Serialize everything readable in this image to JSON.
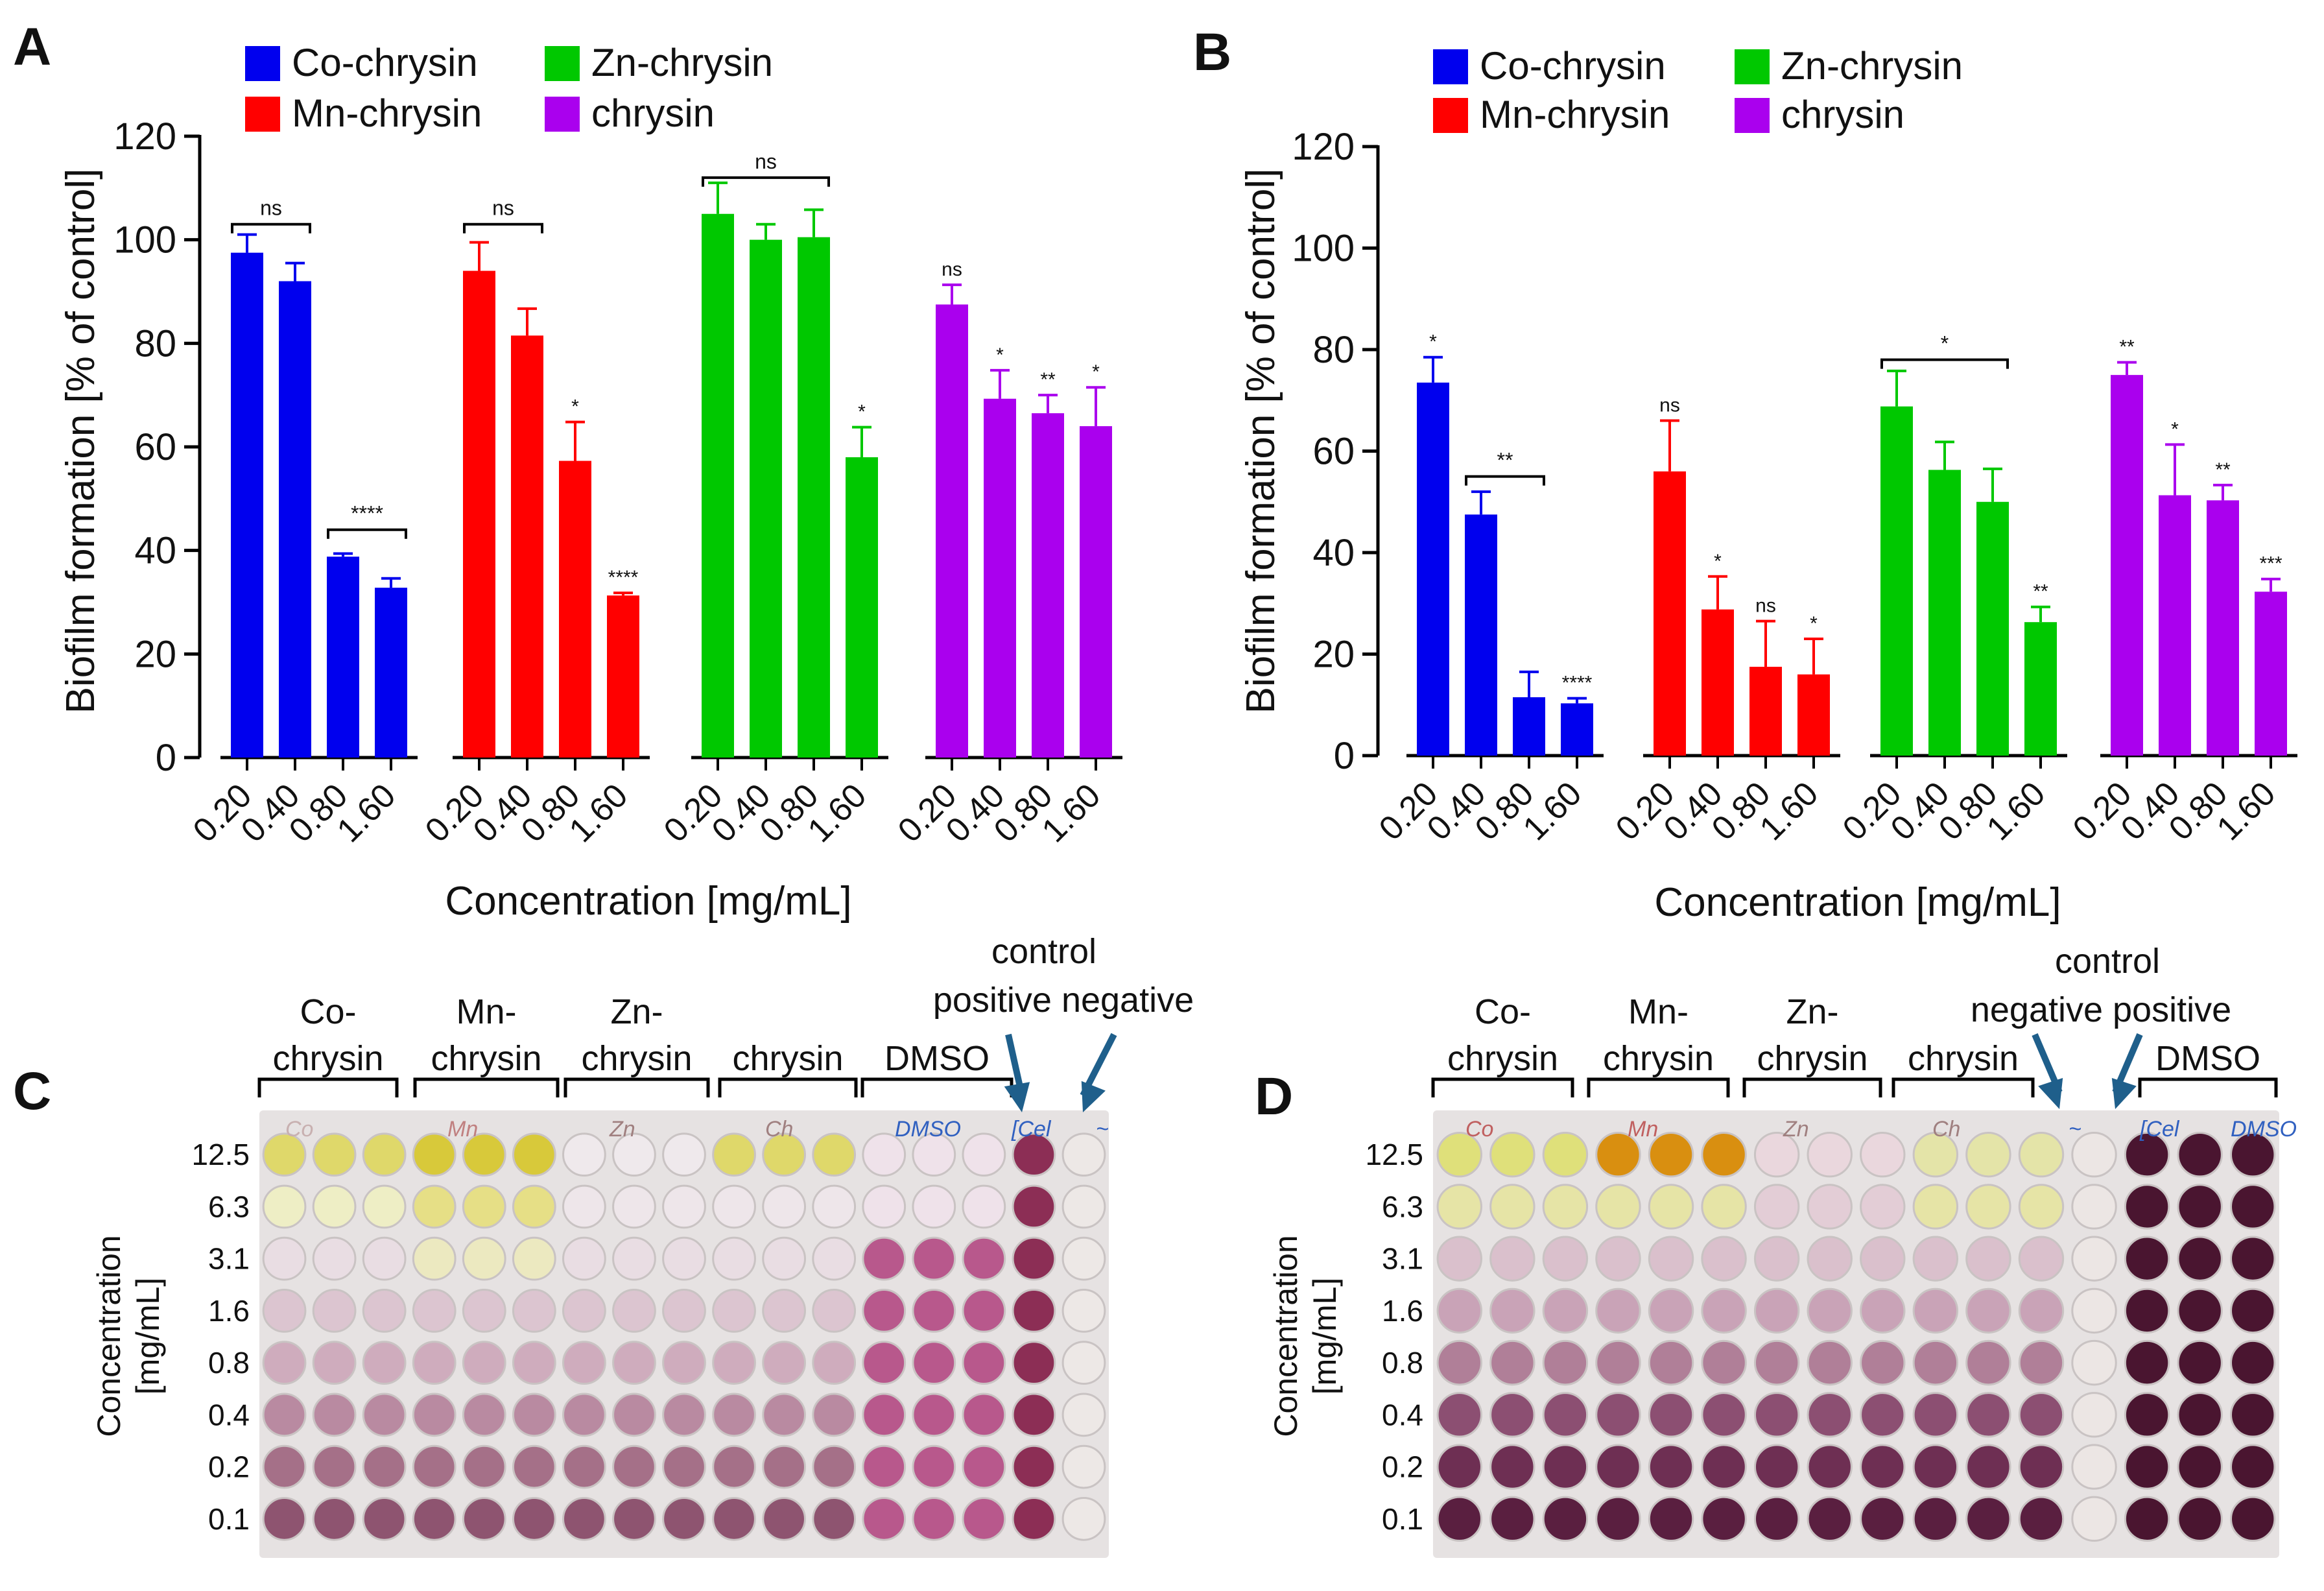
{
  "figure": {
    "panel_labels": {
      "A": "A",
      "B": "B",
      "C": "C",
      "D": "D"
    }
  },
  "colors": {
    "co": "#0000ee",
    "mn": "#ff0000",
    "zn": "#00c800",
    "chrysin": "#aa00ee",
    "axis": "#000000",
    "plate_bg": "#e6e2e2"
  },
  "legend": {
    "items": [
      {
        "label": "Co-chrysin",
        "color_key": "co"
      },
      {
        "label": "Zn-chrysin",
        "color_key": "zn"
      },
      {
        "label": "Mn-chrysin",
        "color_key": "mn"
      },
      {
        "label": "chrysin",
        "color_key": "chrysin"
      }
    ]
  },
  "chart_data": [
    {
      "panel": "A",
      "type": "bar",
      "ylabel": "Biofilm formation [% of control]",
      "xlabel": "Concentration [mg/mL]",
      "ylim": [
        0,
        120
      ],
      "yticks": [
        0,
        20,
        40,
        60,
        80,
        100,
        120
      ],
      "categories": [
        "0.20",
        "0.40",
        "0.80",
        "1.60"
      ],
      "series": [
        {
          "name": "Co-chrysin",
          "color_key": "co",
          "values": [
            97.5,
            92,
            38.8,
            32.8
          ],
          "errors": [
            3.5,
            3.5,
            0.6,
            1.8
          ],
          "sig": [
            "",
            "",
            "",
            ""
          ]
        },
        {
          "name": "Mn-chrysin",
          "color_key": "mn",
          "values": [
            94,
            81.5,
            57.3,
            31.3
          ],
          "errors": [
            5.5,
            5.2,
            7.5,
            0.5
          ],
          "sig": [
            "",
            "",
            "*",
            "****"
          ]
        },
        {
          "name": "Zn-chrysin",
          "color_key": "zn",
          "values": [
            105,
            100,
            100.5,
            58
          ],
          "errors": [
            6,
            3,
            5.3,
            5.8
          ],
          "sig": [
            "",
            "",
            "",
            "*"
          ]
        },
        {
          "name": "chrysin",
          "color_key": "chrysin",
          "values": [
            87.5,
            69.3,
            66.5,
            64
          ],
          "errors": [
            3.8,
            5.5,
            3.5,
            7.5
          ],
          "sig": [
            "ns",
            "*",
            "**",
            "*"
          ]
        }
      ],
      "brackets": [
        {
          "series": 0,
          "from": 0,
          "to": 1,
          "y": 103,
          "label": "ns"
        },
        {
          "series": 0,
          "from": 2,
          "to": 3,
          "y": 44,
          "label": "****"
        },
        {
          "series": 1,
          "from": 0,
          "to": 1,
          "y": 103,
          "label": "ns"
        },
        {
          "series": 2,
          "from": 0,
          "to": 2,
          "y": 112,
          "label": "ns"
        }
      ]
    },
    {
      "panel": "B",
      "type": "bar",
      "ylabel": "Biofilm formation [% of control]",
      "xlabel": "Concentration [mg/mL]",
      "ylim": [
        0,
        120
      ],
      "yticks": [
        0,
        20,
        40,
        60,
        80,
        100,
        120
      ],
      "categories": [
        "0.20",
        "0.40",
        "0.80",
        "1.60"
      ],
      "series": [
        {
          "name": "Co-chrysin",
          "color_key": "co",
          "values": [
            73.5,
            47.5,
            11.5,
            10.3
          ],
          "errors": [
            5,
            4.5,
            5,
            1
          ],
          "sig": [
            "*",
            "",
            "",
            "****"
          ]
        },
        {
          "name": "Mn-chrysin",
          "color_key": "mn",
          "values": [
            56,
            28.8,
            17.5,
            16
          ],
          "errors": [
            10,
            6.5,
            9,
            7
          ],
          "sig": [
            "ns",
            "*",
            "ns",
            "*"
          ]
        },
        {
          "name": "Zn-chrysin",
          "color_key": "zn",
          "values": [
            68.8,
            56.3,
            50,
            26.3
          ],
          "errors": [
            7,
            5.5,
            6.5,
            3
          ],
          "sig": [
            "",
            "",
            "",
            "**"
          ]
        },
        {
          "name": "chrysin",
          "color_key": "chrysin",
          "values": [
            75,
            51.3,
            50.3,
            32.3
          ],
          "errors": [
            2.5,
            10,
            3,
            2.5
          ],
          "sig": [
            "**",
            "*",
            "**",
            "***"
          ]
        }
      ],
      "brackets": [
        {
          "series": 0,
          "from": 1,
          "to": 2,
          "y": 55,
          "label": "**"
        },
        {
          "series": 2,
          "from": 0,
          "to": 2,
          "y": 78,
          "label": "*"
        }
      ]
    }
  ],
  "plates": [
    {
      "panel": "C",
      "group_labels": [
        {
          "line1": "Co-",
          "line2": "chrysin"
        },
        {
          "line1": "Mn-",
          "line2": "chrysin"
        },
        {
          "line1": "Zn-",
          "line2": "chrysin"
        },
        {
          "line1": "",
          "line2": "chrysin"
        },
        {
          "line1": "",
          "line2": "DMSO"
        }
      ],
      "control_title": "control",
      "control_sub": "positive negative",
      "ylabel_line1": "Concentration",
      "ylabel_line2": "[mg/mL]",
      "row_labels": [
        "12.5",
        "6.3",
        "3.1",
        "1.6",
        "0.8",
        "0.4",
        "0.2",
        "0.1"
      ],
      "handwriting": [
        "Co",
        "Mn",
        "Zn",
        "Ch",
        "DMSO",
        "[Cel",
        "~"
      ]
    },
    {
      "panel": "D",
      "group_labels": [
        {
          "line1": "Co-",
          "line2": "chrysin"
        },
        {
          "line1": "Mn-",
          "line2": "chrysin"
        },
        {
          "line1": "Zn-",
          "line2": "chrysin"
        },
        {
          "line1": "",
          "line2": "chrysin"
        }
      ],
      "dmso_label": "DMSO",
      "control_title": "control",
      "control_sub": "negative positive",
      "ylabel_line1": "Concentration",
      "ylabel_line2": "[mg/mL]",
      "row_labels": [
        "12.5",
        "6.3",
        "3.1",
        "1.6",
        "0.8",
        "0.4",
        "0.2",
        "0.1"
      ],
      "handwriting": [
        "Co",
        "Mn",
        "Zn",
        "Ch",
        "~",
        "[Cel",
        "DMSO"
      ]
    }
  ]
}
